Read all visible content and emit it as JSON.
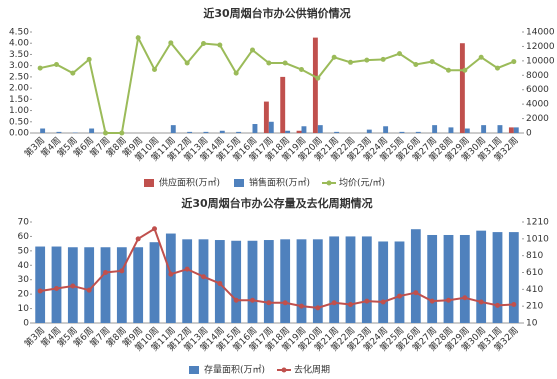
{
  "chart_data": [
    {
      "type": "bar",
      "title": "近30周烟台市办公供销价情况",
      "categories": [
        "第3周",
        "第4周",
        "第5周",
        "第6周",
        "第7周",
        "第8周",
        "第9周",
        "第10周",
        "第11周",
        "第12周",
        "第13周",
        "第14周",
        "第15周",
        "第16周",
        "第17周",
        "第18周",
        "第19周",
        "第20周",
        "第21周",
        "第22周",
        "第23周",
        "第24周",
        "第25周",
        "第26周",
        "第27周",
        "第28周",
        "第29周",
        "第30周",
        "第31周",
        "第32周"
      ],
      "series": [
        {
          "name": "供应面积(万㎡)",
          "color": "#c0504d",
          "values": [
            0,
            0,
            0,
            0,
            0,
            0,
            0,
            0,
            0,
            0,
            0,
            0,
            0,
            0,
            1.4,
            2.5,
            0.1,
            4.25,
            0,
            0,
            0,
            0,
            0,
            0,
            0,
            0,
            4.0,
            0,
            0,
            0.25
          ]
        },
        {
          "name": "销售面积(万㎡)",
          "color": "#4f81bd",
          "values": [
            0.2,
            0.05,
            0.02,
            0.2,
            0,
            0,
            0,
            0,
            0.35,
            0.05,
            0.05,
            0.1,
            0.05,
            0.4,
            0.5,
            0.1,
            0.3,
            0.35,
            0.05,
            0,
            0.15,
            0.3,
            0.05,
            0.05,
            0.35,
            0.25,
            0.2,
            0.35,
            0.35,
            0.25
          ]
        },
        {
          "name": "均价(元/㎡)",
          "color": "#9bbb59",
          "type": "line",
          "axis": "y2",
          "values": [
            9000,
            9500,
            8300,
            10200,
            0,
            0,
            13200,
            8800,
            12500,
            9700,
            12400,
            12200,
            8300,
            11500,
            9700,
            9700,
            8800,
            7600,
            10500,
            9800,
            10100,
            10200,
            11000,
            9500,
            9900,
            8700,
            8700,
            10500,
            9000,
            9900
          ]
        }
      ],
      "ylim": [
        0,
        4.5
      ],
      "yticks": [
        {
          "value": 0,
          "label": "0.00"
        },
        {
          "value": 0.5,
          "label": "0.50"
        },
        {
          "value": 1,
          "label": "1.00"
        },
        {
          "value": 1.5,
          "label": "1.50"
        },
        {
          "value": 2,
          "label": "2.00"
        },
        {
          "value": 2.5,
          "label": "2.50"
        },
        {
          "value": 3,
          "label": "3.00"
        },
        {
          "value": 3.5,
          "label": "3.50"
        },
        {
          "value": 4,
          "label": "4.00"
        },
        {
          "value": 4.5,
          "label": "4.50"
        }
      ],
      "y2lim": [
        0,
        14000
      ],
      "y2ticks": [
        0,
        2000,
        4000,
        6000,
        8000,
        10000,
        12000,
        14000
      ],
      "legend": "bottom"
    },
    {
      "type": "bar",
      "title": "近30周烟台市办公存量及去化周期情况",
      "categories": [
        "第3周",
        "第4周",
        "第5周",
        "第6周",
        "第7周",
        "第8周",
        "第9周",
        "第10周",
        "第11周",
        "第12周",
        "第13周",
        "第14周",
        "第15周",
        "第16周",
        "第17周",
        "第18周",
        "第19周",
        "第20周",
        "第21周",
        "第22周",
        "第23周",
        "第24周",
        "第25周",
        "第26周",
        "第27周",
        "第28周",
        "第29周",
        "第30周",
        "第31周",
        "第32周"
      ],
      "series": [
        {
          "name": "存量面积(万㎡)",
          "color": "#4f81bd",
          "values": [
            53,
            53,
            52.5,
            52.5,
            52.5,
            52.5,
            52.5,
            56,
            62,
            58,
            58,
            57.5,
            57,
            57,
            57.5,
            58,
            58,
            58,
            60,
            60,
            60,
            56.5,
            56.5,
            65,
            61,
            61,
            61,
            64,
            63,
            63
          ]
        },
        {
          "name": "去化周期",
          "color": "#c0504d",
          "type": "line",
          "axis": "y2",
          "values": [
            390,
            420,
            450,
            400,
            610,
            630,
            1010,
            1130,
            590,
            650,
            560,
            480,
            280,
            280,
            250,
            250,
            210,
            190,
            250,
            230,
            270,
            260,
            330,
            370,
            270,
            280,
            310,
            260,
            220,
            230
          ]
        }
      ],
      "ylim": [
        0,
        70
      ],
      "yticks": [
        0,
        10,
        20,
        30,
        40,
        50,
        60,
        70
      ],
      "y2lim": [
        10,
        1210
      ],
      "y2ticks": [
        10,
        210,
        410,
        610,
        810,
        1010,
        1210
      ],
      "legend": "bottom"
    }
  ]
}
